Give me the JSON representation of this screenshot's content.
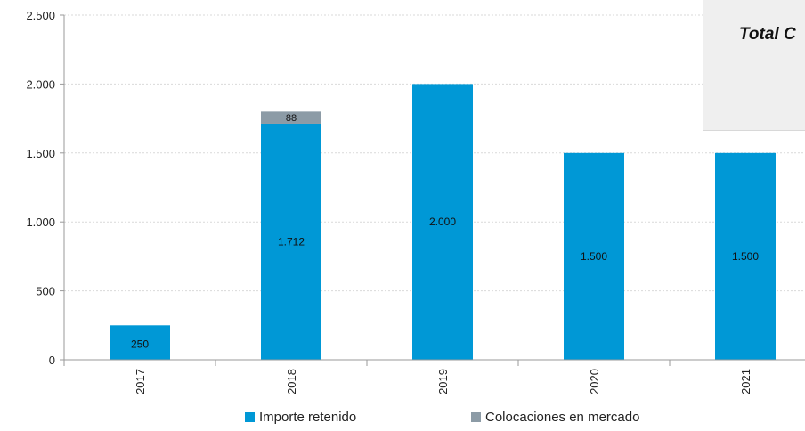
{
  "colors": {
    "retenido": "#0098D6",
    "colocaciones": "#8C9BA6",
    "axis": "#9a9a9a",
    "grid": "#d9d9d9"
  },
  "callout": {
    "text": "Total C"
  },
  "legend": {
    "items": [
      {
        "label": "Importe retenido",
        "color": "#0098D6"
      },
      {
        "label": "Colocaciones en mercado",
        "color": "#8C9BA6"
      }
    ]
  },
  "chart_data": {
    "type": "bar",
    "stacked": true,
    "categories": [
      "2017",
      "2018",
      "2019",
      "2020",
      "2021"
    ],
    "series": [
      {
        "name": "Importe retenido",
        "values": [
          250,
          1712,
          2000,
          1500,
          1500
        ],
        "labels": [
          "250",
          "1.712",
          "2.000",
          "1.500",
          "1.500"
        ]
      },
      {
        "name": "Colocaciones en mercado",
        "values": [
          0,
          88,
          0,
          0,
          0
        ],
        "labels": [
          "",
          "88",
          "",
          "",
          ""
        ]
      }
    ],
    "y_ticks": [
      0,
      500,
      1000,
      1500,
      2000,
      2500
    ],
    "y_tick_labels": [
      "0",
      "500",
      "1.000",
      "1.500",
      "2.000",
      "2.500"
    ],
    "ylim": [
      0,
      2500
    ],
    "grid": true,
    "legend_position": "bottom"
  }
}
